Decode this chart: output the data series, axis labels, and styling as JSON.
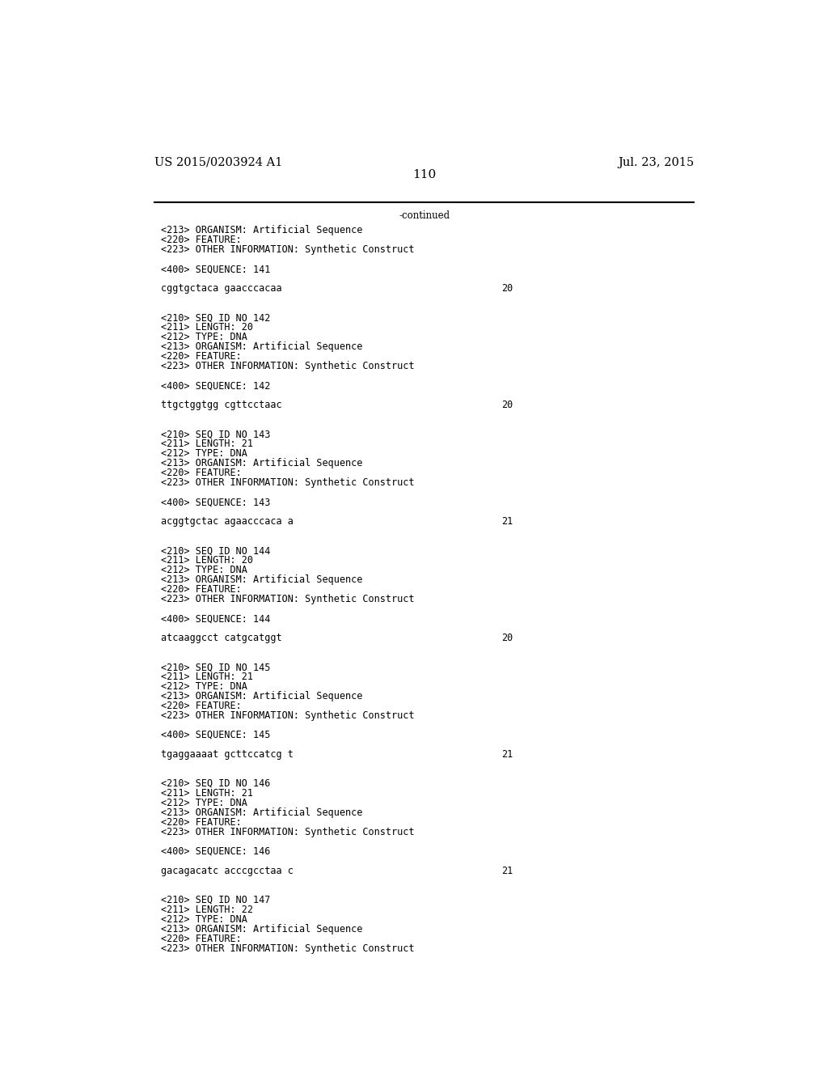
{
  "bg_color": "#ffffff",
  "header_left": "US 2015/0203924 A1",
  "header_right": "Jul. 23, 2015",
  "page_number": "110",
  "continued_text": "-continued",
  "font_size_header": 10.5,
  "font_size_body": 8.5,
  "font_size_page": 11,
  "mono_font": "DejaVu Sans Mono",
  "serif_font": "DejaVu Serif",
  "content": [
    {
      "type": "meta",
      "text": "<213> ORGANISM: Artificial Sequence"
    },
    {
      "type": "meta",
      "text": "<220> FEATURE:"
    },
    {
      "type": "meta",
      "text": "<223> OTHER INFORMATION: Synthetic Construct"
    },
    {
      "type": "blank"
    },
    {
      "type": "meta",
      "text": "<400> SEQUENCE: 141"
    },
    {
      "type": "blank"
    },
    {
      "type": "seq",
      "text": "cggtgctaca gaacccacaa",
      "num": "20"
    },
    {
      "type": "blank"
    },
    {
      "type": "blank"
    },
    {
      "type": "meta",
      "text": "<210> SEQ ID NO 142"
    },
    {
      "type": "meta",
      "text": "<211> LENGTH: 20"
    },
    {
      "type": "meta",
      "text": "<212> TYPE: DNA"
    },
    {
      "type": "meta",
      "text": "<213> ORGANISM: Artificial Sequence"
    },
    {
      "type": "meta",
      "text": "<220> FEATURE:"
    },
    {
      "type": "meta",
      "text": "<223> OTHER INFORMATION: Synthetic Construct"
    },
    {
      "type": "blank"
    },
    {
      "type": "meta",
      "text": "<400> SEQUENCE: 142"
    },
    {
      "type": "blank"
    },
    {
      "type": "seq",
      "text": "ttgctggtgg cgttcctaac",
      "num": "20"
    },
    {
      "type": "blank"
    },
    {
      "type": "blank"
    },
    {
      "type": "meta",
      "text": "<210> SEQ ID NO 143"
    },
    {
      "type": "meta",
      "text": "<211> LENGTH: 21"
    },
    {
      "type": "meta",
      "text": "<212> TYPE: DNA"
    },
    {
      "type": "meta",
      "text": "<213> ORGANISM: Artificial Sequence"
    },
    {
      "type": "meta",
      "text": "<220> FEATURE:"
    },
    {
      "type": "meta",
      "text": "<223> OTHER INFORMATION: Synthetic Construct"
    },
    {
      "type": "blank"
    },
    {
      "type": "meta",
      "text": "<400> SEQUENCE: 143"
    },
    {
      "type": "blank"
    },
    {
      "type": "seq",
      "text": "acggtgctac agaacccaca a",
      "num": "21"
    },
    {
      "type": "blank"
    },
    {
      "type": "blank"
    },
    {
      "type": "meta",
      "text": "<210> SEQ ID NO 144"
    },
    {
      "type": "meta",
      "text": "<211> LENGTH: 20"
    },
    {
      "type": "meta",
      "text": "<212> TYPE: DNA"
    },
    {
      "type": "meta",
      "text": "<213> ORGANISM: Artificial Sequence"
    },
    {
      "type": "meta",
      "text": "<220> FEATURE:"
    },
    {
      "type": "meta",
      "text": "<223> OTHER INFORMATION: Synthetic Construct"
    },
    {
      "type": "blank"
    },
    {
      "type": "meta",
      "text": "<400> SEQUENCE: 144"
    },
    {
      "type": "blank"
    },
    {
      "type": "seq",
      "text": "atcaaggcct catgcatggt",
      "num": "20"
    },
    {
      "type": "blank"
    },
    {
      "type": "blank"
    },
    {
      "type": "meta",
      "text": "<210> SEQ ID NO 145"
    },
    {
      "type": "meta",
      "text": "<211> LENGTH: 21"
    },
    {
      "type": "meta",
      "text": "<212> TYPE: DNA"
    },
    {
      "type": "meta",
      "text": "<213> ORGANISM: Artificial Sequence"
    },
    {
      "type": "meta",
      "text": "<220> FEATURE:"
    },
    {
      "type": "meta",
      "text": "<223> OTHER INFORMATION: Synthetic Construct"
    },
    {
      "type": "blank"
    },
    {
      "type": "meta",
      "text": "<400> SEQUENCE: 145"
    },
    {
      "type": "blank"
    },
    {
      "type": "seq",
      "text": "tgaggaaaat gcttccatcg t",
      "num": "21"
    },
    {
      "type": "blank"
    },
    {
      "type": "blank"
    },
    {
      "type": "meta",
      "text": "<210> SEQ ID NO 146"
    },
    {
      "type": "meta",
      "text": "<211> LENGTH: 21"
    },
    {
      "type": "meta",
      "text": "<212> TYPE: DNA"
    },
    {
      "type": "meta",
      "text": "<213> ORGANISM: Artificial Sequence"
    },
    {
      "type": "meta",
      "text": "<220> FEATURE:"
    },
    {
      "type": "meta",
      "text": "<223> OTHER INFORMATION: Synthetic Construct"
    },
    {
      "type": "blank"
    },
    {
      "type": "meta",
      "text": "<400> SEQUENCE: 146"
    },
    {
      "type": "blank"
    },
    {
      "type": "seq",
      "text": "gacagacatc acccgcctaa c",
      "num": "21"
    },
    {
      "type": "blank"
    },
    {
      "type": "blank"
    },
    {
      "type": "meta",
      "text": "<210> SEQ ID NO 147"
    },
    {
      "type": "meta",
      "text": "<211> LENGTH: 22"
    },
    {
      "type": "meta",
      "text": "<212> TYPE: DNA"
    },
    {
      "type": "meta",
      "text": "<213> ORGANISM: Artificial Sequence"
    },
    {
      "type": "meta",
      "text": "<220> FEATURE:"
    },
    {
      "type": "meta",
      "text": "<223> OTHER INFORMATION: Synthetic Construct"
    }
  ]
}
